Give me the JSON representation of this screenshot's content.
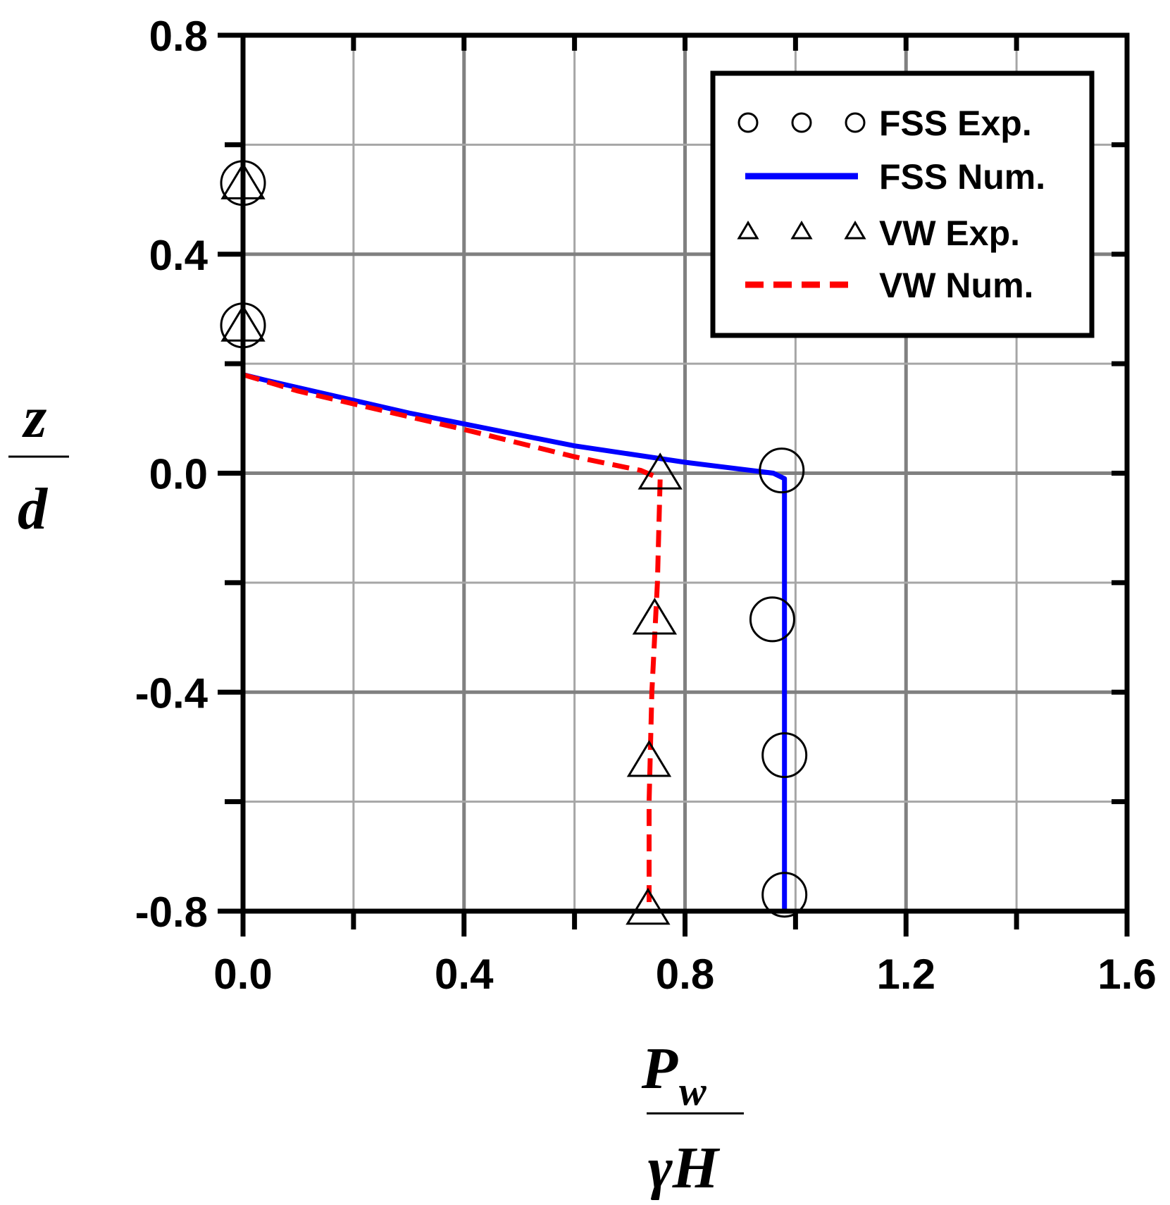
{
  "chart_data": {
    "type": "line",
    "xlabel": {
      "numerator": "P",
      "numerator_sub": "w",
      "denominator": "γH"
    },
    "ylabel": {
      "numerator": "z",
      "denominator": "d"
    },
    "xlim": [
      0.0,
      1.6
    ],
    "ylim": [
      -0.8,
      0.8
    ],
    "xticks": [
      "0.0",
      "0.4",
      "0.8",
      "1.2",
      "1.6"
    ],
    "yticks": [
      "0.8",
      "0.4",
      "0.0",
      "-0.4",
      "-0.8"
    ],
    "xtick_values": [
      0.0,
      0.4,
      0.8,
      1.2,
      1.6
    ],
    "ytick_values": [
      0.8,
      0.4,
      0.0,
      -0.4,
      -0.8
    ],
    "grid": true,
    "legend_position": "top-right",
    "series": [
      {
        "name": "FSS Exp.",
        "kind": "scatter",
        "marker": "circle",
        "color": "#000000",
        "points": [
          [
            0.0,
            0.53
          ],
          [
            0.0,
            0.27
          ],
          [
            0.975,
            0.005
          ],
          [
            0.958,
            -0.267
          ],
          [
            0.98,
            -0.515
          ],
          [
            0.98,
            -0.77
          ]
        ]
      },
      {
        "name": "FSS Num.",
        "kind": "line",
        "style": "solid",
        "color": "#0000ff",
        "points": [
          [
            0.0,
            0.18
          ],
          [
            0.04,
            0.17
          ],
          [
            0.3,
            0.11
          ],
          [
            0.6,
            0.05
          ],
          [
            0.8,
            0.02
          ],
          [
            0.96,
            0.0
          ],
          [
            0.98,
            -0.01
          ],
          [
            0.98,
            -0.8
          ]
        ]
      },
      {
        "name": "VW Exp.",
        "kind": "scatter",
        "marker": "triangle",
        "color": "#000000",
        "points": [
          [
            0.0,
            0.53
          ],
          [
            0.0,
            0.27
          ],
          [
            0.755,
            0.0
          ],
          [
            0.745,
            -0.265
          ],
          [
            0.735,
            -0.525
          ],
          [
            0.733,
            -0.795
          ]
        ]
      },
      {
        "name": "VW Num.",
        "kind": "line",
        "style": "dashed",
        "color": "#ff0000",
        "points": [
          [
            0.0,
            0.18
          ],
          [
            0.1,
            0.15
          ],
          [
            0.4,
            0.08
          ],
          [
            0.6,
            0.03
          ],
          [
            0.72,
            0.005
          ],
          [
            0.755,
            -0.01
          ],
          [
            0.75,
            -0.2
          ],
          [
            0.74,
            -0.4
          ],
          [
            0.735,
            -0.6
          ],
          [
            0.735,
            -0.8
          ]
        ]
      }
    ]
  }
}
